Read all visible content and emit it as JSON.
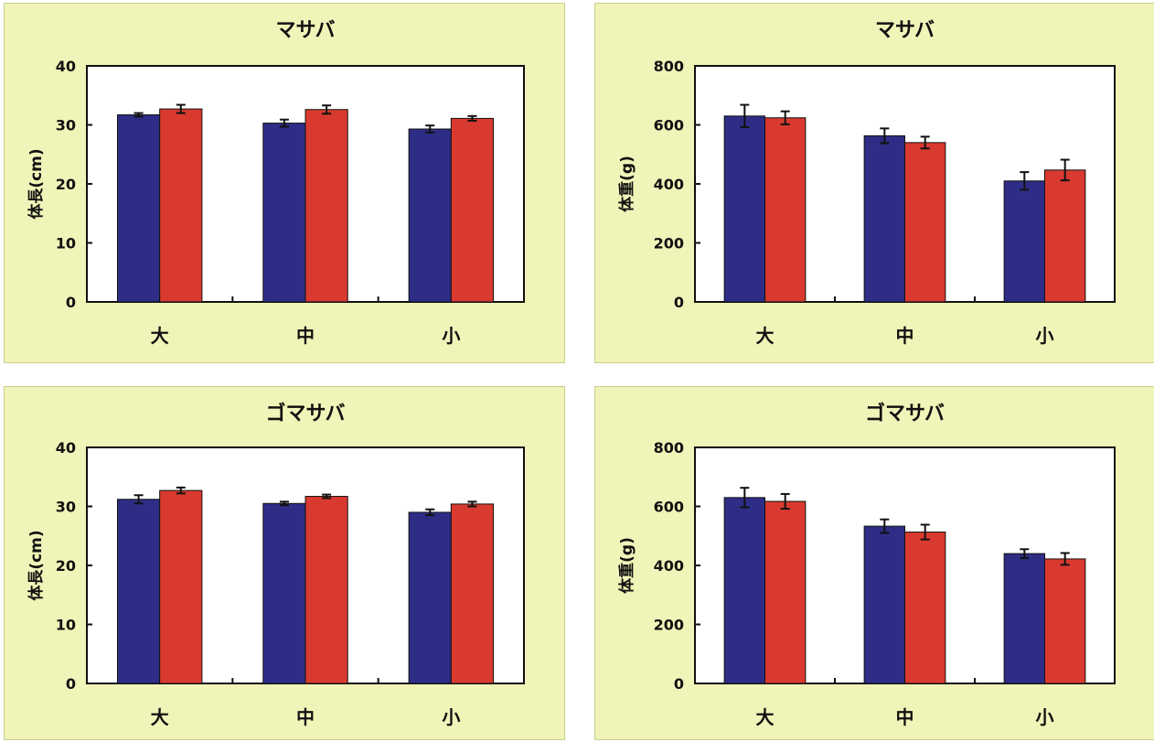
{
  "colors": {
    "series1": "#2e2d86",
    "series2": "#d93a2f",
    "panel": "#f0f4b8"
  },
  "chart_data": [
    {
      "type": "bar",
      "title": "マサバ",
      "ylabel": "体長(cm)",
      "categories": [
        "大",
        "中",
        "小"
      ],
      "ylim": [
        0,
        40
      ],
      "yticks": [
        "0",
        "10",
        "20",
        "30",
        "40"
      ],
      "grid": false,
      "legend": "none",
      "series": [
        {
          "values": [
            31.7,
            30.3,
            29.3
          ],
          "errors": [
            0.3,
            0.6,
            0.6
          ]
        },
        {
          "values": [
            32.7,
            32.6,
            31.1
          ],
          "errors": [
            0.7,
            0.7,
            0.4
          ]
        }
      ]
    },
    {
      "type": "bar",
      "title": "マサバ",
      "ylabel": "体重(g)",
      "categories": [
        "大",
        "中",
        "小"
      ],
      "ylim": [
        0,
        800
      ],
      "yticks": [
        "0",
        "200",
        "400",
        "600",
        "800"
      ],
      "grid": false,
      "legend": "none",
      "series": [
        {
          "values": [
            630,
            563,
            410
          ],
          "errors": [
            38,
            25,
            30
          ]
        },
        {
          "values": [
            624,
            540,
            447
          ],
          "errors": [
            22,
            20,
            35
          ]
        }
      ]
    },
    {
      "type": "bar",
      "title": "ゴマサバ",
      "ylabel": "体長(cm)",
      "categories": [
        "大",
        "中",
        "小"
      ],
      "ylim": [
        0,
        40
      ],
      "yticks": [
        "0",
        "10",
        "20",
        "30",
        "40"
      ],
      "grid": false,
      "legend": "none",
      "series": [
        {
          "values": [
            31.2,
            30.5,
            29.0
          ],
          "errors": [
            0.7,
            0.3,
            0.5
          ]
        },
        {
          "values": [
            32.7,
            31.7,
            30.4
          ],
          "errors": [
            0.5,
            0.3,
            0.4
          ]
        }
      ]
    },
    {
      "type": "bar",
      "title": "ゴマサバ",
      "ylabel": "体重(g)",
      "categories": [
        "大",
        "中",
        "小"
      ],
      "ylim": [
        0,
        800
      ],
      "yticks": [
        "0",
        "200",
        "400",
        "600",
        "800"
      ],
      "grid": false,
      "legend": "none",
      "series": [
        {
          "values": [
            630,
            533,
            440
          ],
          "errors": [
            33,
            23,
            15
          ]
        },
        {
          "values": [
            617,
            513,
            422
          ],
          "errors": [
            25,
            25,
            20
          ]
        }
      ]
    }
  ]
}
